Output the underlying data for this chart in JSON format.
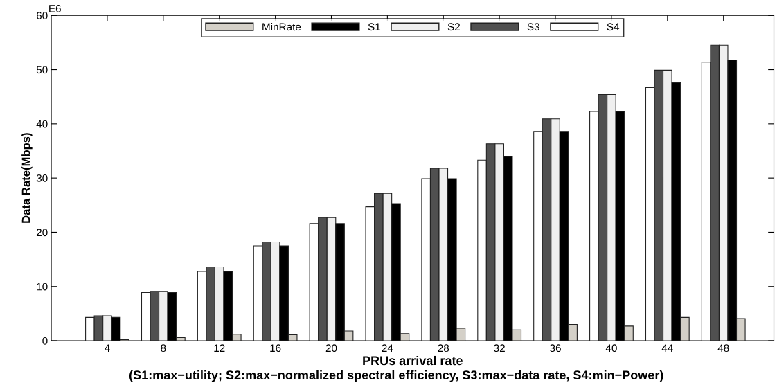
{
  "chart_data": {
    "type": "bar",
    "xlabel": "PRUs arrival rate",
    "ylabel": "Data Rate(Mbps)",
    "annotations": [
      "E6",
      "(S1:max−utility; S2:max−normalized spectral efficiency, S3:max−data rate, S4:min−Power)"
    ],
    "categories": [
      "4",
      "8",
      "12",
      "16",
      "20",
      "24",
      "28",
      "32",
      "36",
      "40",
      "44",
      "48"
    ],
    "series": [
      {
        "name": "S4",
        "color": "#ffffff",
        "values": [
          4.3,
          8.9,
          12.8,
          17.5,
          21.6,
          24.7,
          29.9,
          33.3,
          38.6,
          42.3,
          46.7,
          51.4
        ]
      },
      {
        "name": "S3",
        "color": "#505050",
        "values": [
          4.6,
          9.1,
          13.6,
          18.2,
          22.7,
          27.2,
          31.8,
          36.3,
          40.9,
          45.4,
          49.9,
          54.5
        ]
      },
      {
        "name": "S2",
        "color": "#efefef",
        "values": [
          4.6,
          9.1,
          13.6,
          18.2,
          22.7,
          27.2,
          31.8,
          36.3,
          40.9,
          45.4,
          49.9,
          54.5
        ]
      },
      {
        "name": "S1",
        "color": "#000000",
        "values": [
          4.3,
          8.9,
          12.8,
          17.5,
          21.6,
          25.3,
          29.9,
          34.0,
          38.6,
          42.3,
          47.6,
          51.8
        ]
      },
      {
        "name": "MinRate",
        "color": "#d4d0c8",
        "values": [
          0.2,
          0.6,
          1.2,
          1.1,
          1.8,
          1.3,
          2.3,
          2.0,
          3.0,
          2.7,
          4.3,
          4.1
        ]
      }
    ],
    "ylim": [
      0,
      60
    ],
    "yticks": [
      0,
      10,
      20,
      30,
      40,
      50,
      60
    ],
    "legend": "top",
    "grid": false
  }
}
